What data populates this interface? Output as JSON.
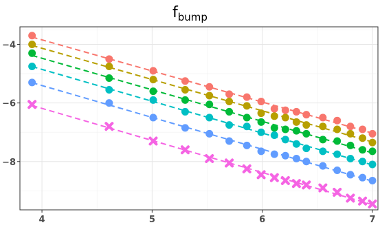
{
  "chart_data": {
    "type": "scatter",
    "title": {
      "main": "f",
      "subscript": "bump"
    },
    "xlabel": "",
    "ylabel": "",
    "xlim": [
      3.8,
      7.05
    ],
    "ylim": [
      -9.65,
      -3.4
    ],
    "x_ticks": [
      4,
      5,
      6,
      7
    ],
    "x_tick_labels": [
      "4",
      "5",
      "6",
      "7"
    ],
    "y_ticks": [
      -4,
      -6,
      -8
    ],
    "y_tick_labels": [
      "−4",
      "−6",
      "−8"
    ],
    "grid": true,
    "legend": "none",
    "x": [
      3.91,
      4.61,
      5.01,
      5.3,
      5.52,
      5.7,
      5.86,
      5.99,
      6.11,
      6.21,
      6.31,
      6.4,
      6.55,
      6.68,
      6.8,
      6.91,
      7.0
    ],
    "series": [
      {
        "color": "#F8766D",
        "marker": "circle",
        "line": "dashed",
        "values": [
          -3.7,
          -4.5,
          -4.9,
          -5.25,
          -5.45,
          -5.7,
          -5.8,
          -5.95,
          -6.2,
          -6.25,
          -6.3,
          -6.4,
          -6.5,
          -6.6,
          -6.8,
          -6.9,
          -7.05
        ]
      },
      {
        "color": "#B79F00",
        "marker": "circle",
        "line": "dashed",
        "values": [
          -4.0,
          -4.75,
          -5.2,
          -5.55,
          -5.75,
          -5.95,
          -6.1,
          -6.35,
          -6.45,
          -6.5,
          -6.65,
          -6.75,
          -6.8,
          -6.9,
          -7.05,
          -7.2,
          -7.35
        ]
      },
      {
        "color": "#00BA38",
        "marker": "circle",
        "line": "dashed",
        "values": [
          -4.3,
          -5.15,
          -5.6,
          -5.9,
          -6.05,
          -6.3,
          -6.5,
          -6.65,
          -6.85,
          -6.9,
          -6.95,
          -7.05,
          -7.25,
          -7.3,
          -7.45,
          -7.6,
          -7.65
        ]
      },
      {
        "color": "#00BFC4",
        "marker": "circle",
        "line": "dashed",
        "values": [
          -4.75,
          -5.55,
          -5.9,
          -6.3,
          -6.5,
          -6.75,
          -6.8,
          -7.0,
          -7.1,
          -7.25,
          -7.4,
          -7.55,
          -7.65,
          -7.75,
          -7.9,
          -8.0,
          -8.1
        ]
      },
      {
        "color": "#619CFF",
        "marker": "circle",
        "line": "dashed",
        "values": [
          -5.3,
          -6.0,
          -6.5,
          -6.85,
          -7.05,
          -7.3,
          -7.45,
          -7.65,
          -7.75,
          -7.8,
          -7.9,
          -8.0,
          -8.15,
          -8.3,
          -8.45,
          -8.55,
          -8.65
        ]
      },
      {
        "color": "#F564E3",
        "marker": "x",
        "line": "dashed",
        "values": [
          -6.05,
          -6.8,
          -7.3,
          -7.6,
          -7.9,
          -8.05,
          -8.25,
          -8.45,
          -8.55,
          -8.65,
          -8.75,
          -8.8,
          -8.9,
          -9.05,
          -9.25,
          -9.35,
          -9.45
        ]
      }
    ]
  }
}
